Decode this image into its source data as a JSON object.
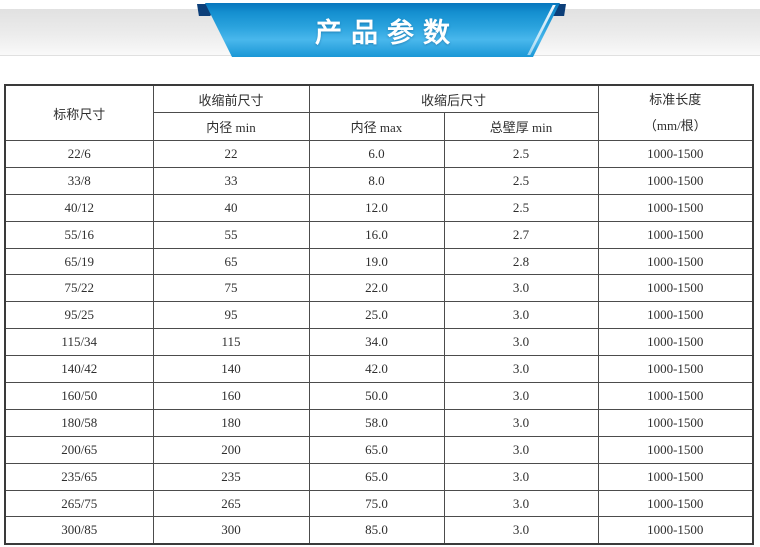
{
  "banner": {
    "title": "产品参数",
    "colors": {
      "ribbon_blue_top": "#0877bd",
      "ribbon_blue_mid": "#49b7ec",
      "ribbon_blue_bottom": "#1a97d6",
      "fold_navy": "#0d3f79",
      "strip_gray": "#e9e9e9",
      "title_text": "#ffffff"
    }
  },
  "table": {
    "header": {
      "nominal_size": "标称尺寸",
      "before_shrink": "收缩前尺寸",
      "after_shrink": "收缩后尺寸",
      "inner_diameter_min": "内径 min",
      "inner_diameter_max": "内径 max",
      "wall_thickness_min": "总壁厚 min",
      "standard_length_line1": "标准长度",
      "standard_length_line2": "（mm/根）"
    },
    "rows": [
      [
        "22/6",
        "22",
        "6.0",
        "2.5",
        "1000-1500"
      ],
      [
        "33/8",
        "33",
        "8.0",
        "2.5",
        "1000-1500"
      ],
      [
        "40/12",
        "40",
        "12.0",
        "2.5",
        "1000-1500"
      ],
      [
        "55/16",
        "55",
        "16.0",
        "2.7",
        "1000-1500"
      ],
      [
        "65/19",
        "65",
        "19.0",
        "2.8",
        "1000-1500"
      ],
      [
        "75/22",
        "75",
        "22.0",
        "3.0",
        "1000-1500"
      ],
      [
        "95/25",
        "95",
        "25.0",
        "3.0",
        "1000-1500"
      ],
      [
        "115/34",
        "115",
        "34.0",
        "3.0",
        "1000-1500"
      ],
      [
        "140/42",
        "140",
        "42.0",
        "3.0",
        "1000-1500"
      ],
      [
        "160/50",
        "160",
        "50.0",
        "3.0",
        "1000-1500"
      ],
      [
        "180/58",
        "180",
        "58.0",
        "3.0",
        "1000-1500"
      ],
      [
        "200/65",
        "200",
        "65.0",
        "3.0",
        "1000-1500"
      ],
      [
        "235/65",
        "235",
        "65.0",
        "3.0",
        "1000-1500"
      ],
      [
        "265/75",
        "265",
        "75.0",
        "3.0",
        "1000-1500"
      ],
      [
        "300/85",
        "300",
        "85.0",
        "3.0",
        "1000-1500"
      ]
    ]
  }
}
